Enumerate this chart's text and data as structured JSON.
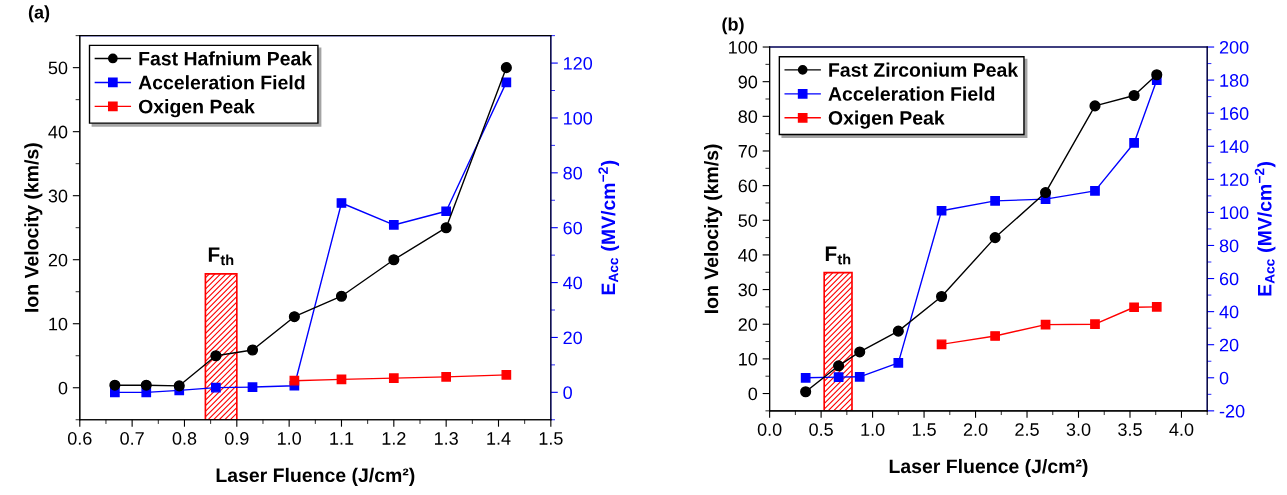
{
  "chart_data": [
    {
      "type": "line",
      "title": "(a)",
      "xlabel": "Laser Fluence (J/cm²)",
      "ylabel": "Ion Velocity (km/s)",
      "y2label": "E$_{Acc}$ (MV/cm$^{−2}$)",
      "xlim": [
        0.6,
        1.5
      ],
      "xticks": [
        0.6,
        0.7,
        0.8,
        0.9,
        {
          "value": 1,
          "label": "1.0"
        },
        1.1,
        1.2,
        1.3,
        1.4,
        1.5
      ],
      "ylim": [
        -5,
        55
      ],
      "yticks": [
        0,
        10,
        20,
        30,
        40,
        50
      ],
      "y2lim": [
        -10,
        130
      ],
      "y2ticks": [
        0,
        20,
        40,
        60,
        80,
        100,
        120
      ],
      "legend": "top left",
      "grid": false,
      "series": [
        {
          "name": "Fast Hafnium Peak",
          "color": "#000000",
          "marker": "circle",
          "x": [
            0.667,
            0.727,
            0.79,
            0.86,
            0.93,
            1.01,
            1.1,
            1.2,
            1.3,
            1.415
          ],
          "values": [
            0.4,
            0.4,
            0.3,
            5,
            5.9,
            11.1,
            14.3,
            20,
            25,
            50
          ]
        },
        {
          "name": "Acceleration Field",
          "color": "#0000ff",
          "marker": "square",
          "axis": "y2",
          "x": [
            0.667,
            0.727,
            0.79,
            0.86,
            0.93,
            1.01,
            1.1,
            1.2,
            1.3,
            1.415
          ],
          "values": [
            0,
            0,
            0.7,
            1.7,
            1.9,
            2.4,
            69,
            61,
            66,
            113
          ]
        },
        {
          "name": "Oxigen Peak",
          "color": "#ff0000",
          "marker": "square",
          "x": [
            1.01,
            1.1,
            1.2,
            1.3,
            1.415
          ],
          "values": [
            1.1,
            1.3,
            1.5,
            1.7,
            2.0
          ]
        }
      ],
      "bands": [
        {
          "axis": "x",
          "from": 0.84,
          "to": 0.9,
          "label": "F$_{th}$",
          "color": "#ff0000"
        }
      ]
    },
    {
      "type": "line",
      "title": "(b)",
      "xlabel": "Laser Fluence (J/cm²)",
      "ylabel": "Ion Velocity (km/s)",
      "y2label": "E$_{Acc}$ (MV/cm$^{−2}$)",
      "xlim": [
        0,
        4.25
      ],
      "xticks": [
        {
          "value": 0,
          "label": "0.0"
        },
        0.5,
        {
          "value": 1,
          "label": "1.0"
        },
        1.5,
        {
          "value": 2,
          "label": "2.0"
        },
        2.5,
        {
          "value": 3,
          "label": "3.0"
        },
        3.5,
        {
          "value": 4,
          "label": "4.0"
        }
      ],
      "ylim": [
        -5,
        100
      ],
      "yticks": [
        0,
        10,
        20,
        30,
        40,
        50,
        60,
        70,
        80,
        90,
        100
      ],
      "y2lim": [
        -20,
        200
      ],
      "y2ticks": [
        -20,
        0,
        20,
        40,
        60,
        80,
        100,
        120,
        140,
        160,
        180,
        200
      ],
      "legend": "top left",
      "grid": false,
      "series": [
        {
          "name": "Fast Zirconium Peak",
          "color": "#000000",
          "marker": "circle",
          "x": [
            0.35,
            0.67,
            0.875,
            1.25,
            1.67,
            2.19,
            2.68,
            3.16,
            3.54,
            3.76
          ],
          "values": [
            0.5,
            8,
            12,
            18,
            28,
            45,
            58,
            83,
            86,
            92
          ]
        },
        {
          "name": "Acceleration Field",
          "color": "#0000ff",
          "marker": "square",
          "axis": "y2",
          "x": [
            0.35,
            0.67,
            0.875,
            1.25,
            1.67,
            2.19,
            2.68,
            3.16,
            3.54,
            3.76
          ],
          "values": [
            0,
            0.4,
            0.6,
            9,
            101,
            107,
            108,
            113,
            142,
            180
          ]
        },
        {
          "name": "Oxigen Peak",
          "color": "#ff0000",
          "marker": "square",
          "x": [
            1.67,
            2.19,
            2.68,
            3.16,
            3.54,
            3.76
          ],
          "values": [
            14.2,
            16.6,
            19.9,
            20,
            24.9,
            25
          ]
        }
      ],
      "bands": [
        {
          "axis": "x",
          "from": 0.53,
          "to": 0.8,
          "label": "F$_{th}$",
          "color": "#ff0000"
        }
      ]
    }
  ]
}
